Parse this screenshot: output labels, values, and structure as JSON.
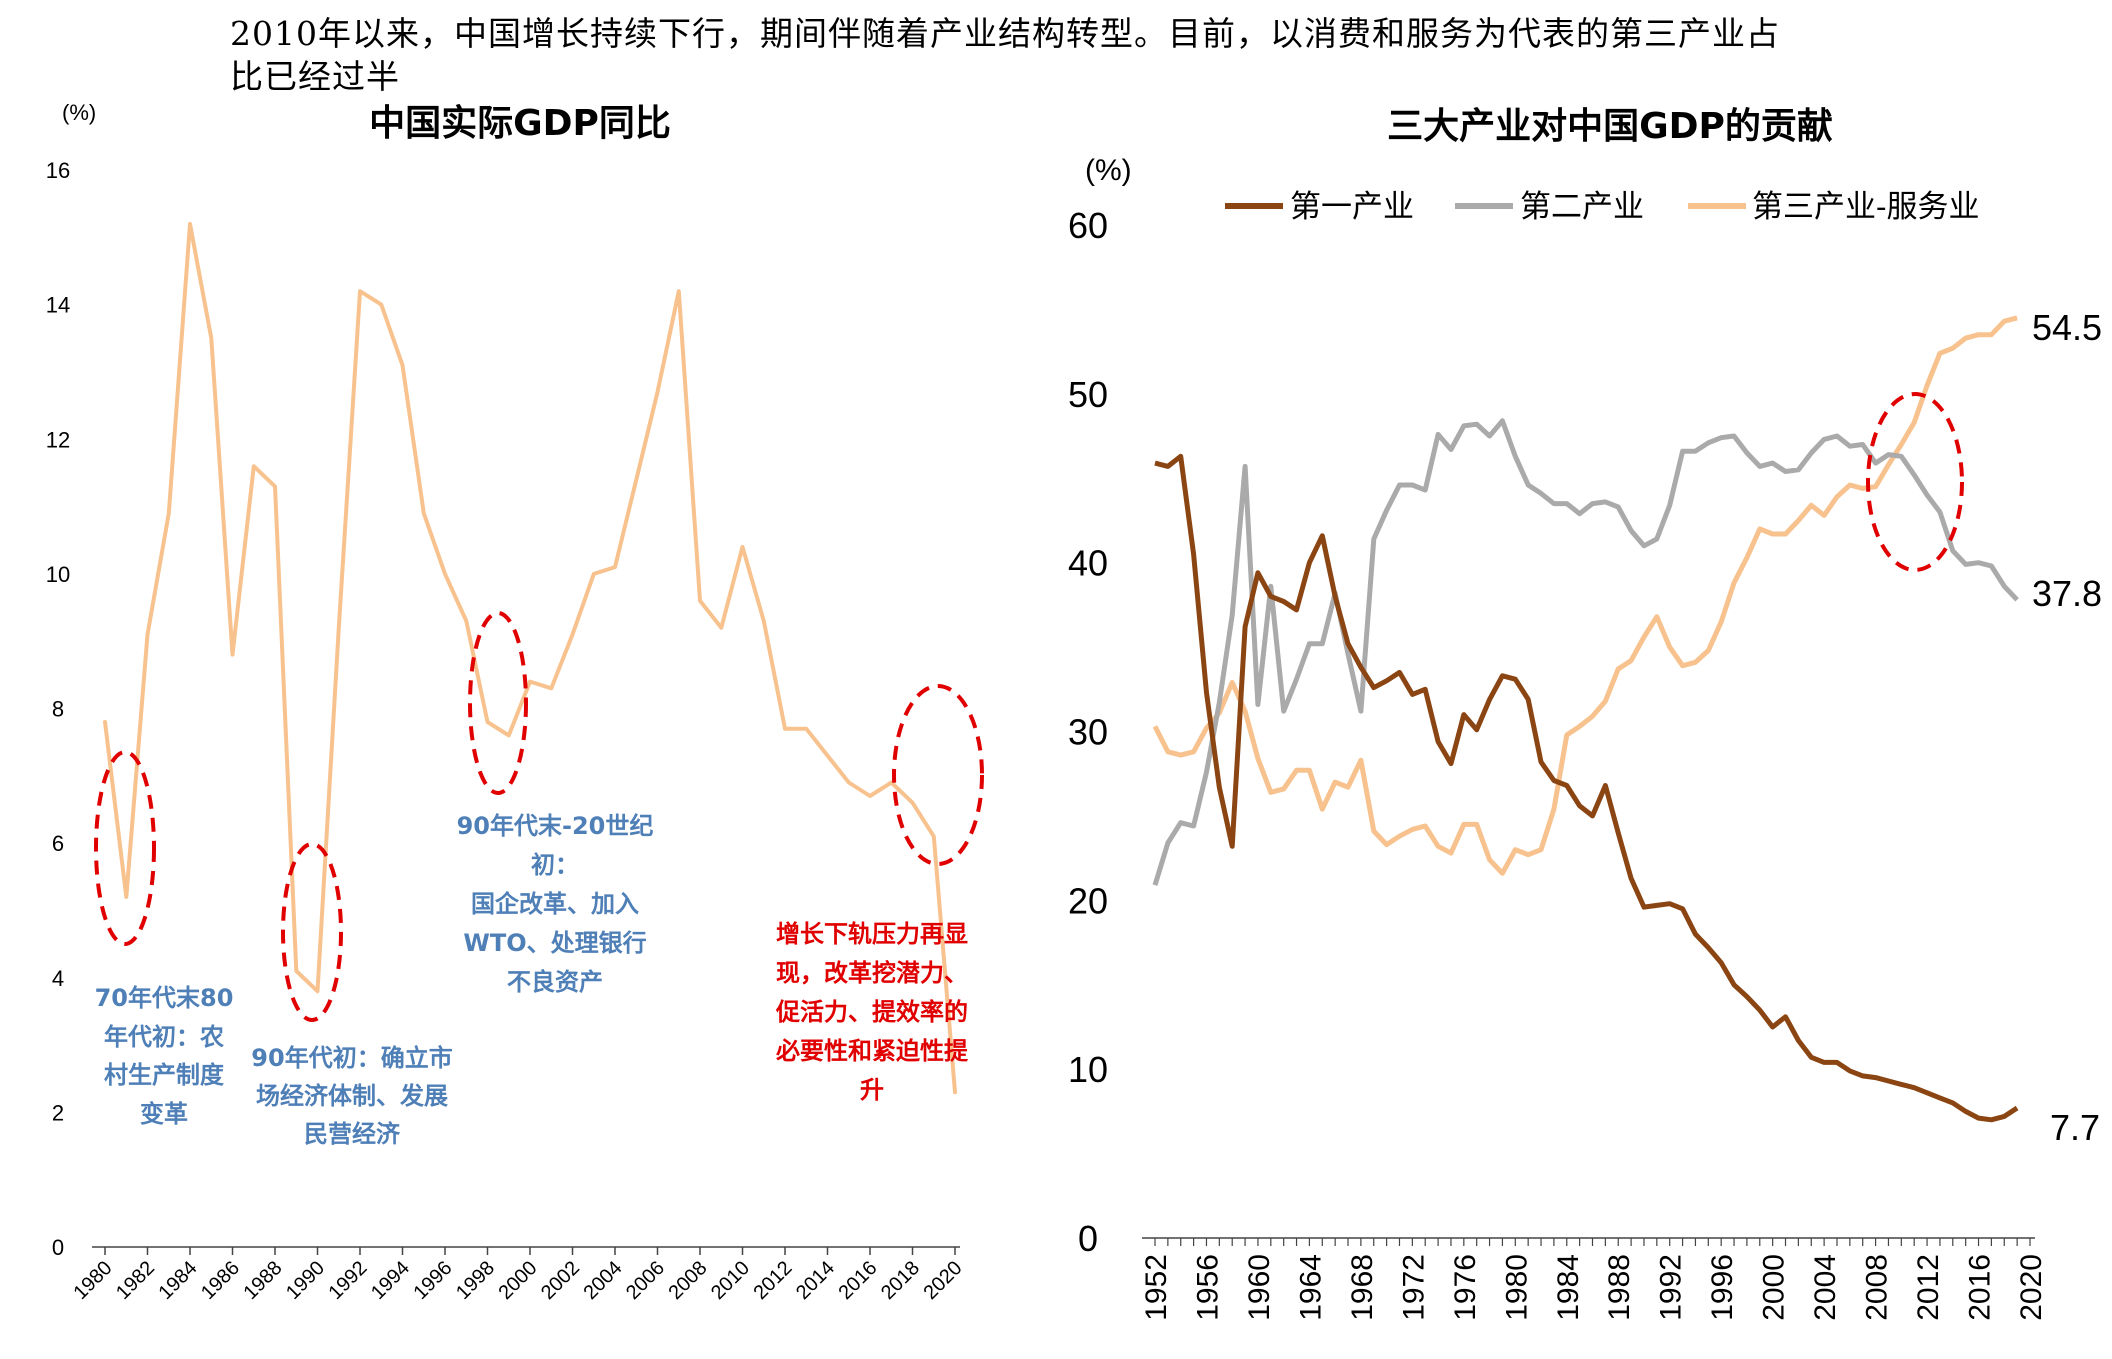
{
  "headline": "2010年以来，中国增长持续下行，期间伴随着产业结构转型。目前，以消费和服务为代表的第三产业占比已经过半",
  "colors": {
    "gdp_line": "#f7c28e",
    "primary": "#8b4513",
    "secondary": "#aaaaaa",
    "tertiary": "#f7c28e",
    "circle": "#e00000",
    "blue_note": "#4f7fb7",
    "red_note": "#e00000"
  },
  "chart_data": [
    {
      "type": "line",
      "title": "中国实际GDP同比",
      "ylabel": "(%)",
      "ylim": [
        0,
        16
      ],
      "yticks": [
        "0",
        "2",
        "4",
        "6",
        "8",
        "10",
        "12",
        "14",
        "16"
      ],
      "xticks": [
        "1980",
        "1982",
        "1984",
        "1986",
        "1988",
        "1990",
        "1992",
        "1994",
        "1996",
        "1998",
        "2000",
        "2002",
        "2004",
        "2006",
        "2008",
        "2010",
        "2012",
        "2014",
        "2016",
        "2018",
        "2020"
      ],
      "x": [
        1980,
        1981,
        1982,
        1983,
        1984,
        1985,
        1986,
        1987,
        1988,
        1989,
        1990,
        1991,
        1992,
        1993,
        1994,
        1995,
        1996,
        1997,
        1998,
        1999,
        2000,
        2001,
        2002,
        2003,
        2004,
        2005,
        2006,
        2007,
        2008,
        2009,
        2010,
        2011,
        2012,
        2013,
        2014,
        2015,
        2016,
        2017,
        2018,
        2019,
        2020
      ],
      "values": [
        7.8,
        5.2,
        9.1,
        10.9,
        15.2,
        13.5,
        8.8,
        11.6,
        11.3,
        4.1,
        3.8,
        9.2,
        14.2,
        14.0,
        13.1,
        10.9,
        10.0,
        9.3,
        7.8,
        7.6,
        8.4,
        8.3,
        9.1,
        10.0,
        10.1,
        11.4,
        12.7,
        14.2,
        9.6,
        9.2,
        10.4,
        9.3,
        7.7,
        7.7,
        7.3,
        6.9,
        6.7,
        6.9,
        6.6,
        6.1,
        2.3
      ],
      "annotations": [
        {
          "text_lines": [
            "70年代末80",
            "年代初：农",
            "村生产制度",
            "变革"
          ],
          "color": "blue"
        },
        {
          "text_lines": [
            "90年代初：确立市",
            "场经济体制、发展",
            "民营经济"
          ],
          "color": "blue"
        },
        {
          "text_lines": [
            "90年代末-20世纪",
            "初：",
            "国企改革、加入",
            "WTO、处理银行",
            "不良资产"
          ],
          "color": "blue"
        },
        {
          "text_lines": [
            "增长下轨压力再显",
            "现，改革挖潜力、",
            "促活力、提效率的",
            "必要性和紧迫性提",
            "升"
          ],
          "color": "red"
        }
      ]
    },
    {
      "type": "line",
      "title": "三大产业对中国GDP的贡献",
      "ylabel": "(%)",
      "ylim": [
        0,
        60
      ],
      "yticks": [
        "0",
        "10",
        "20",
        "30",
        "40",
        "50",
        "60"
      ],
      "xticks": [
        "1952",
        "1956",
        "1960",
        "1964",
        "1968",
        "1972",
        "1976",
        "1980",
        "1984",
        "1988",
        "1992",
        "1996",
        "2000",
        "2004",
        "2008",
        "2012",
        "2016",
        "2020"
      ],
      "x_start": 1952,
      "x_end": 2020,
      "series": [
        {
          "name": "第一产业",
          "end_label": "7.7",
          "values": [
            45.9,
            45.7,
            46.3,
            40.5,
            32.3,
            26.7,
            23.2,
            36.2,
            39.4,
            38.0,
            37.7,
            37.2,
            40.0,
            41.6,
            38.0,
            35.2,
            33.8,
            32.6,
            33.0,
            33.5,
            32.2,
            32.5,
            29.4,
            28.1,
            31.0,
            30.1,
            31.9,
            33.3,
            33.1,
            31.9,
            28.2,
            27.1,
            26.8,
            25.6,
            25.0,
            26.8,
            24.0,
            21.3,
            19.6,
            19.7,
            19.8,
            19.5,
            18.0,
            17.2,
            16.3,
            15.0,
            14.3,
            13.5,
            12.5,
            13.1,
            11.7,
            10.7,
            10.4,
            10.4,
            9.9,
            9.6,
            9.5,
            9.3,
            9.1,
            8.9,
            8.6,
            8.3,
            8.0,
            7.5,
            7.1,
            7.0,
            7.2,
            7.7
          ]
        },
        {
          "name": "第二产业",
          "end_label": "37.8",
          "values": [
            20.9,
            23.4,
            24.6,
            24.4,
            27.6,
            31.7,
            36.9,
            45.7,
            31.6,
            38.6,
            31.2,
            33.1,
            35.2,
            35.2,
            38.2,
            34.6,
            31.2,
            41.4,
            43.1,
            44.6,
            44.6,
            44.3,
            47.6,
            46.7,
            48.1,
            48.2,
            47.5,
            48.4,
            46.3,
            44.6,
            44.1,
            43.5,
            43.5,
            42.9,
            43.5,
            43.6,
            43.3,
            41.9,
            41.0,
            41.4,
            43.4,
            46.6,
            46.6,
            47.1,
            47.4,
            47.5,
            46.5,
            45.7,
            45.9,
            45.4,
            45.5,
            46.5,
            47.3,
            47.5,
            46.9,
            47.0,
            45.9,
            46.4,
            46.3,
            45.2,
            44.0,
            43.0,
            40.7,
            39.9,
            40.0,
            39.8,
            38.6,
            37.8
          ]
        },
        {
          "name": "第三产业-服务业",
          "end_label": "54.5",
          "values": [
            30.3,
            28.8,
            28.6,
            28.8,
            30.2,
            31.1,
            32.9,
            31.2,
            28.4,
            26.4,
            26.6,
            27.7,
            27.7,
            25.4,
            27.0,
            26.7,
            28.3,
            24.1,
            23.3,
            23.8,
            24.2,
            24.4,
            23.2,
            22.8,
            24.5,
            24.5,
            22.4,
            21.6,
            23.0,
            22.7,
            23.0,
            25.4,
            29.8,
            30.3,
            30.9,
            31.8,
            33.7,
            34.2,
            35.6,
            36.8,
            35.0,
            33.9,
            34.1,
            34.8,
            36.5,
            38.8,
            40.3,
            42.0,
            41.7,
            41.7,
            42.5,
            43.4,
            42.8,
            43.9,
            44.6,
            44.4,
            44.5,
            45.8,
            47.0,
            48.3,
            50.5,
            52.4,
            52.7,
            53.3,
            53.5,
            53.5,
            54.3,
            54.5
          ]
        }
      ]
    }
  ]
}
